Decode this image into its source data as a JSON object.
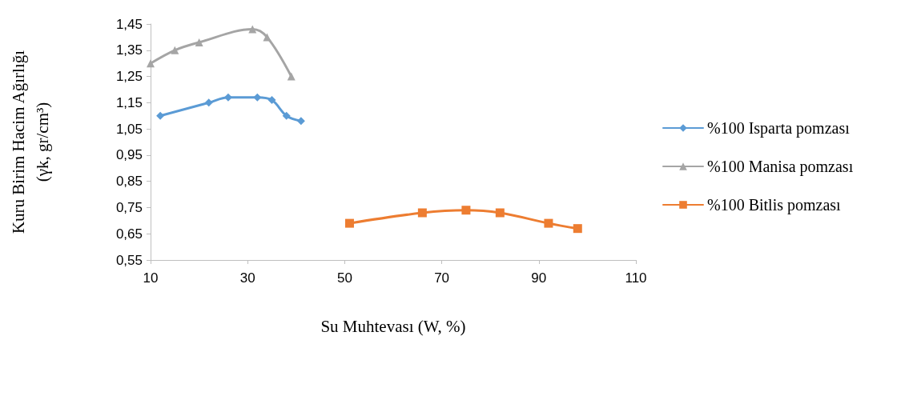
{
  "chart_data": {
    "type": "line",
    "xlabel": "Su Muhtevası (W, %)",
    "ylabel": "Kuru Birim Hacim Ağırlığı\n(γk, gr/cm³)",
    "xlim": [
      10,
      110
    ],
    "xticks": [
      10,
      30,
      50,
      70,
      90,
      110
    ],
    "ylim": [
      0.55,
      1.45
    ],
    "yticks": [
      {
        "value": 0.55,
        "label": "0,55"
      },
      {
        "value": 0.65,
        "label": "0,65"
      },
      {
        "value": 0.75,
        "label": "0,75"
      },
      {
        "value": 0.85,
        "label": "0,85"
      },
      {
        "value": 0.95,
        "label": "0,95"
      },
      {
        "value": 1.05,
        "label": "1,05"
      },
      {
        "value": 1.15,
        "label": "1,15"
      },
      {
        "value": 1.25,
        "label": "1,25"
      },
      {
        "value": 1.35,
        "label": "1,35"
      },
      {
        "value": 1.45,
        "label": "1,45"
      }
    ],
    "grid": false,
    "legend": "right",
    "series": [
      {
        "name": "%100 Isparta pomzası",
        "color": "#5b9bd5",
        "marker": "diamond",
        "x": [
          12,
          22,
          26,
          32,
          35,
          38,
          41
        ],
        "values": [
          1.1,
          1.15,
          1.17,
          1.17,
          1.16,
          1.1,
          1.08
        ]
      },
      {
        "name": "%100 Manisa pomzası",
        "color": "#a5a5a5",
        "marker": "triangle",
        "x": [
          10,
          15,
          20,
          31,
          34,
          39
        ],
        "values": [
          1.3,
          1.35,
          1.38,
          1.43,
          1.4,
          1.25
        ]
      },
      {
        "name": "%100 Bitlis pomzası",
        "color": "#ed7d31",
        "marker": "square",
        "x": [
          51,
          66,
          75,
          82,
          92,
          98
        ],
        "values": [
          0.69,
          0.73,
          0.74,
          0.73,
          0.69,
          0.67
        ]
      }
    ]
  }
}
